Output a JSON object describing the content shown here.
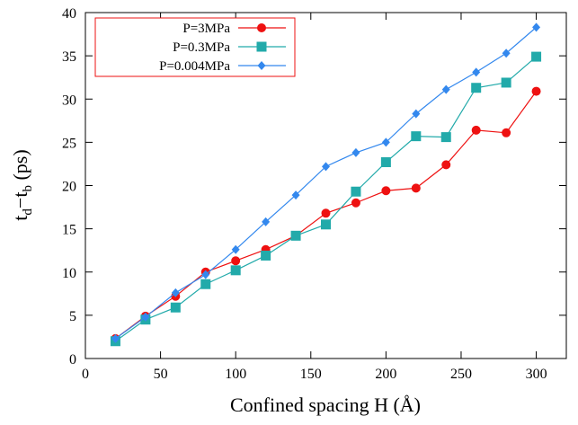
{
  "chart_data": {
    "type": "line",
    "xlabel": "Confined spacing H (Å)",
    "ylabel": "t_d−t_b (ps)",
    "ylabel_parts": {
      "t1": "t",
      "sub1": "d",
      "minus": "−",
      "t2": "t",
      "sub2": "b",
      "unit": " (ps)"
    },
    "xlim": [
      0,
      320
    ],
    "ylim": [
      0,
      40
    ],
    "xticks": [
      0,
      50,
      100,
      150,
      200,
      250,
      300
    ],
    "yticks": [
      0,
      5,
      10,
      15,
      20,
      25,
      30,
      35,
      40
    ],
    "grid": false,
    "legend_position": "top-left",
    "x": [
      20,
      40,
      60,
      80,
      100,
      120,
      140,
      160,
      180,
      200,
      220,
      240,
      260,
      280,
      300
    ],
    "series": [
      {
        "name": "P=3MPa",
        "color": "#ee1111",
        "marker": "circle",
        "values": [
          2.3,
          4.9,
          7.2,
          10.0,
          11.3,
          12.6,
          14.2,
          16.8,
          18.0,
          19.4,
          19.7,
          22.4,
          26.4,
          26.1,
          30.9
        ]
      },
      {
        "name": "P=0.3MPa",
        "color": "#22aaaa",
        "marker": "square",
        "values": [
          2.0,
          4.5,
          5.9,
          8.6,
          10.2,
          11.9,
          14.2,
          15.5,
          19.3,
          22.7,
          25.7,
          25.6,
          31.3,
          31.9,
          34.9
        ]
      },
      {
        "name": "P=0.004MPa",
        "color": "#3388ee",
        "marker": "diamond",
        "values": [
          2.3,
          4.8,
          7.6,
          9.7,
          12.6,
          15.8,
          18.9,
          22.2,
          23.8,
          25.0,
          28.3,
          31.1,
          33.1,
          35.3,
          38.3
        ]
      }
    ]
  }
}
